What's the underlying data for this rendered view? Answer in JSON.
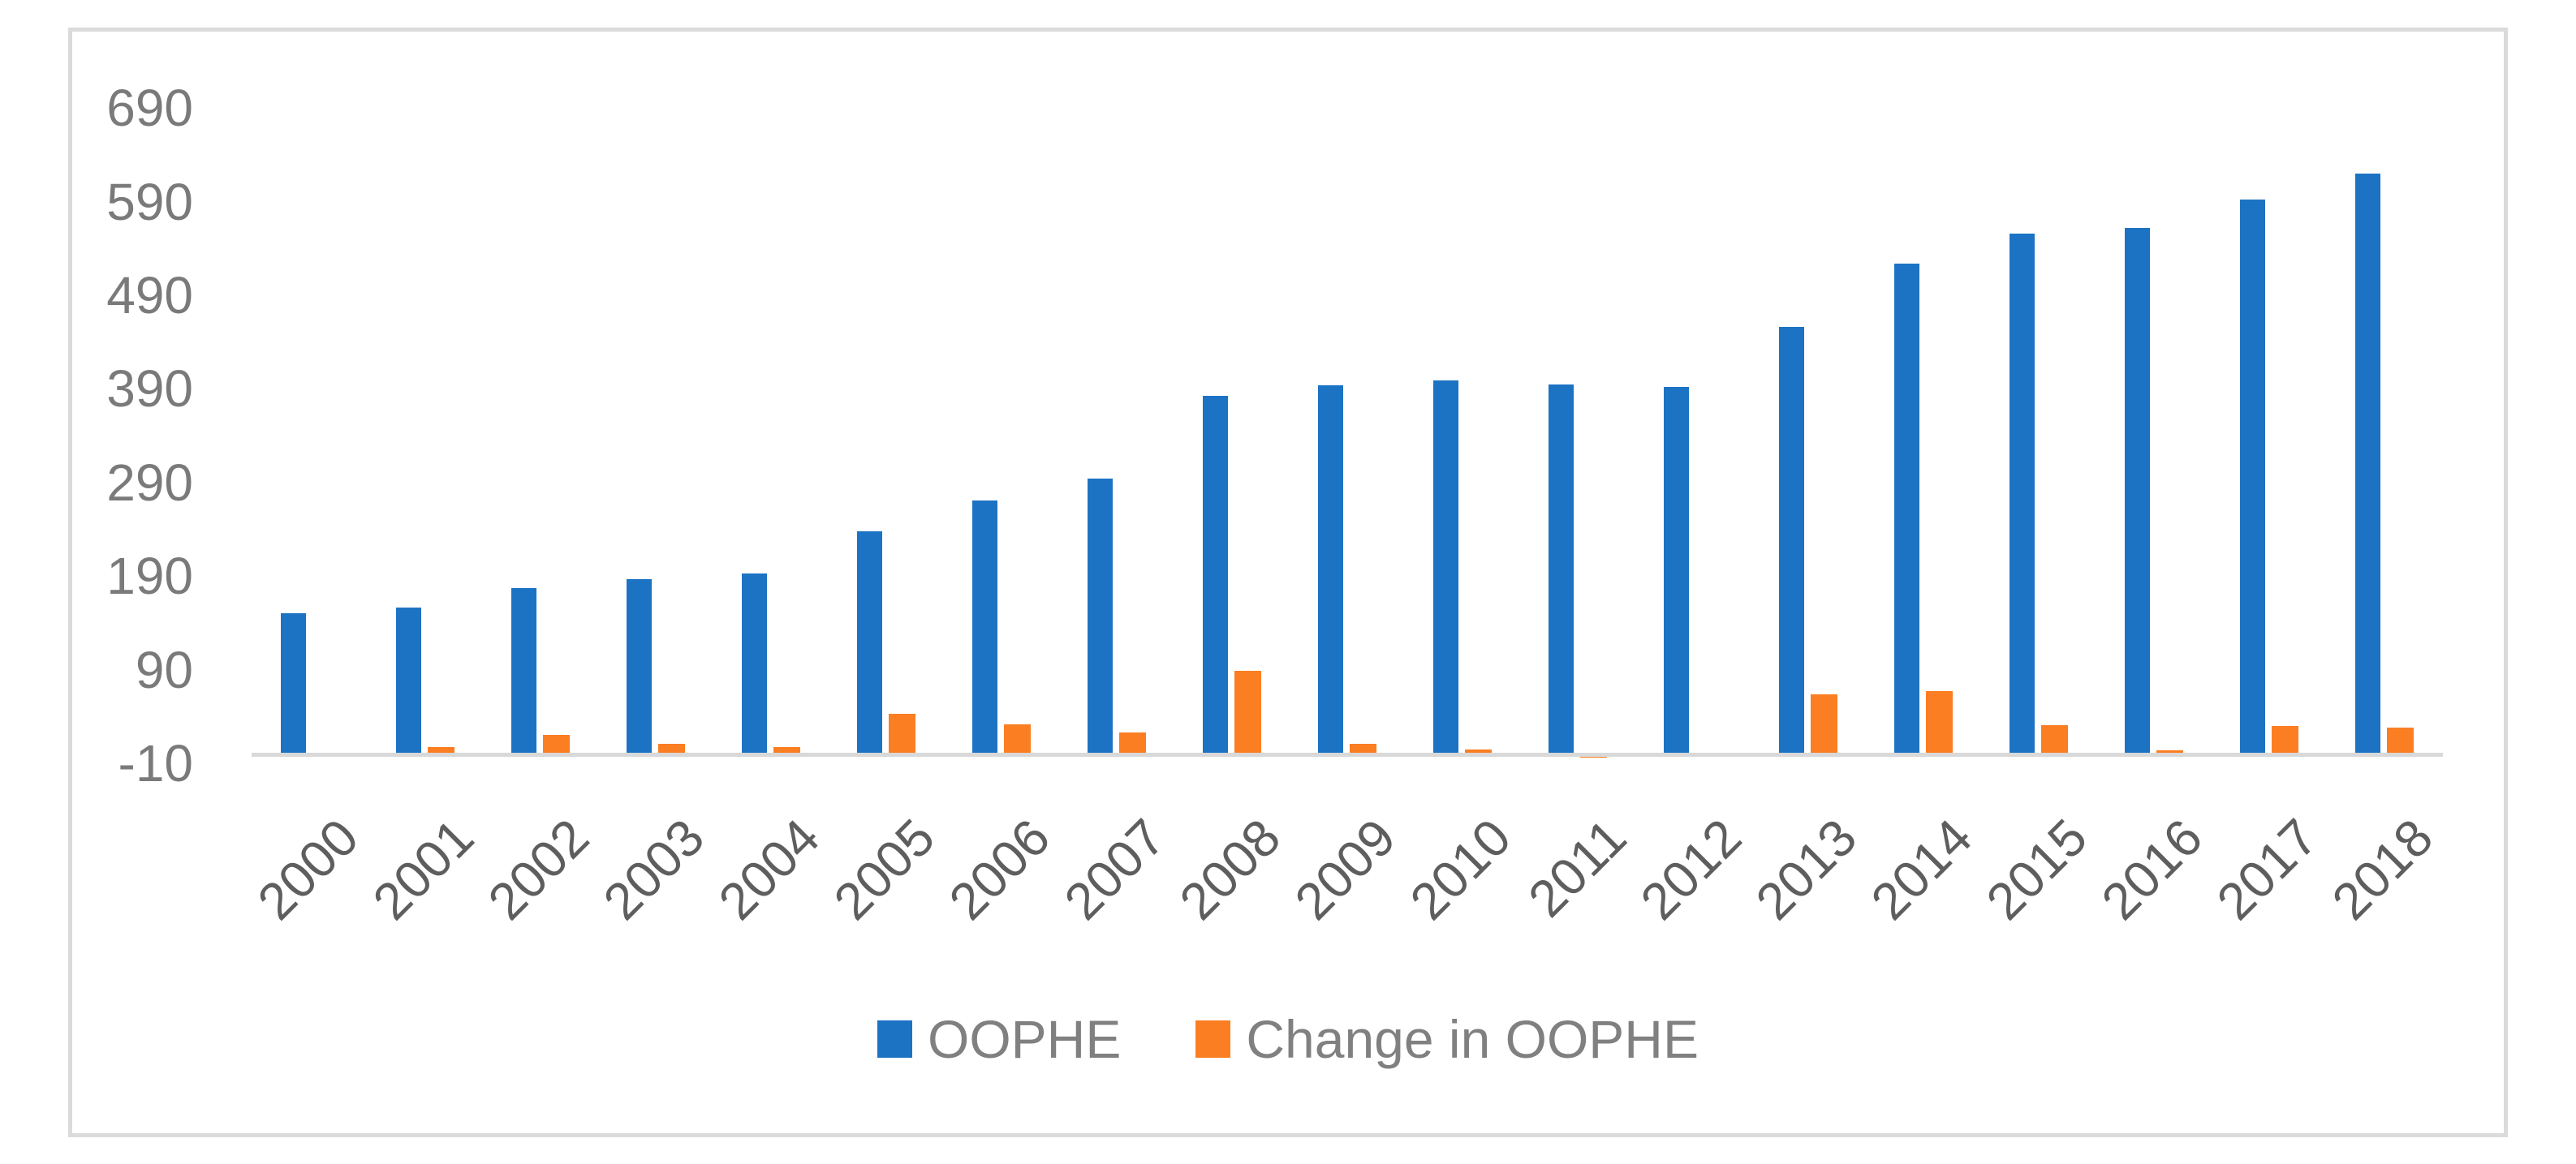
{
  "chart_data": {
    "type": "bar",
    "title": "",
    "xlabel": "",
    "ylabel": "",
    "categories": [
      "2000",
      "2001",
      "2002",
      "2003",
      "2004",
      "2005",
      "2006",
      "2007",
      "2008",
      "2009",
      "2010",
      "2011",
      "2012",
      "2013",
      "2014",
      "2015",
      "2016",
      "2017",
      "2018"
    ],
    "series": [
      {
        "name": "OOPHE",
        "color": "#1c73c4",
        "values": [
          150,
          156,
          177,
          187,
          193,
          238,
          271,
          294,
          383,
          394,
          399,
          395,
          392,
          456,
          524,
          556,
          562,
          592,
          620
        ]
      },
      {
        "name": "Change in OOPHE",
        "color": "#fb7e23",
        "values": [
          0,
          7,
          20,
          11,
          7,
          43,
          32,
          23,
          89,
          11,
          5,
          -4,
          -3,
          64,
          67,
          31,
          4,
          30,
          28
        ]
      }
    ],
    "yticks": [
      -10,
      90,
      190,
      290,
      390,
      490,
      590,
      690
    ],
    "ylim": [
      -10,
      700
    ],
    "grid": false,
    "legend_position": "bottom-center",
    "axis_line_color": "#d9d9d9",
    "ytick_color": "#7a7a7a",
    "xtick_color": "#5e5e5e"
  }
}
